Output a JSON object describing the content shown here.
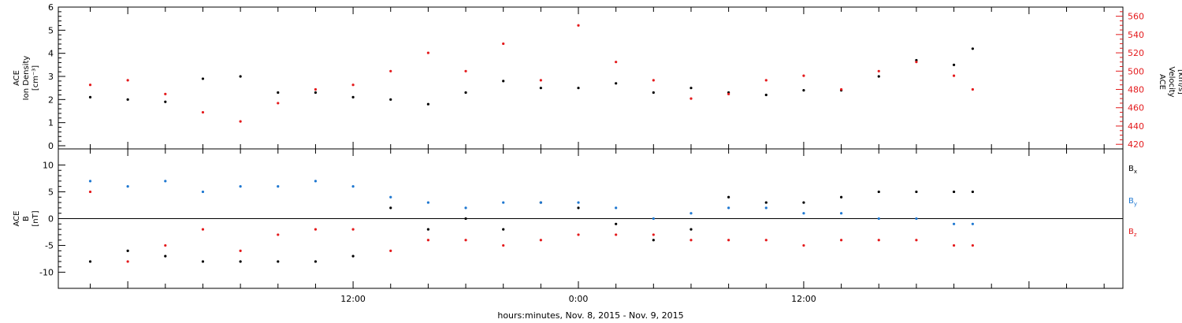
{
  "chart_data": [
    {
      "type": "scatter",
      "panel": "top",
      "left_axis_label": [
        "ACE",
        "Ion Density",
        "[cm⁻³]"
      ],
      "right_axis_label": [
        "ACE",
        "Velocity",
        "[km/s]"
      ],
      "ylim_left": [
        0,
        6
      ],
      "yticks_left": [
        "0",
        "1",
        "2",
        "3",
        "4",
        "5",
        "6"
      ],
      "ylim_right": [
        415,
        570
      ],
      "yticks_right": [
        "420",
        "440",
        "460",
        "480",
        "500",
        "520",
        "540",
        "560"
      ],
      "series": [
        {
          "color": "#000000",
          "axis": "left",
          "x": [
            -14,
            -12,
            -10,
            -8,
            -6,
            -4,
            -2,
            0,
            2,
            4,
            6,
            8,
            10,
            12,
            14,
            16,
            18,
            20,
            22,
            24,
            26,
            28,
            30,
            32,
            33
          ],
          "y": [
            2.1,
            2.0,
            1.9,
            2.9,
            3.0,
            2.3,
            2.3,
            2.1,
            2.0,
            1.8,
            2.3,
            2.8,
            2.5,
            2.5,
            2.7,
            2.3,
            2.5,
            2.3,
            2.2,
            2.4,
            2.4,
            3.0,
            3.7,
            3.5,
            4.2
          ]
        },
        {
          "color": "#e41a1c",
          "axis": "right",
          "x": [
            -14,
            -12,
            -10,
            -8,
            -6,
            -4,
            -2,
            0,
            2,
            4,
            6,
            8,
            10,
            12,
            14,
            16,
            18,
            20,
            22,
            24,
            26,
            28,
            30,
            32,
            33
          ],
          "y": [
            485,
            490,
            475,
            455,
            445,
            465,
            480,
            485,
            500,
            520,
            500,
            530,
            490,
            550,
            510,
            490,
            470,
            475,
            490,
            495,
            480,
            500,
            510,
            495,
            480
          ]
        }
      ]
    },
    {
      "type": "scatter",
      "panel": "bottom",
      "left_axis_label": [
        "ACE",
        "B",
        "[nT]"
      ],
      "ylim": [
        -13,
        13
      ],
      "yticks": [
        "-10",
        "-5",
        "0",
        "5",
        "10"
      ],
      "legend": [
        "Bx",
        "By",
        "Bz"
      ],
      "series": [
        {
          "name": "Bx",
          "color": "#000000",
          "x": [
            -14,
            -12,
            -10,
            -8,
            -6,
            -4,
            -2,
            0,
            2,
            4,
            6,
            8,
            10,
            12,
            14,
            16,
            18,
            20,
            22,
            24,
            26,
            28,
            30,
            32,
            33
          ],
          "y": [
            -8,
            -6,
            -7,
            -8,
            -8,
            -8,
            -8,
            -7,
            2,
            -2,
            0,
            -2,
            3,
            2,
            -1,
            -4,
            -2,
            4,
            3,
            3,
            4,
            5,
            5,
            5,
            5
          ]
        },
        {
          "name": "By",
          "color": "#1f78d1",
          "x": [
            -14,
            -12,
            -10,
            -8,
            -6,
            -4,
            -2,
            0,
            2,
            4,
            6,
            8,
            10,
            12,
            14,
            16,
            18,
            20,
            22,
            24,
            26,
            28,
            30,
            32,
            33
          ],
          "y": [
            7,
            6,
            7,
            5,
            6,
            6,
            7,
            6,
            4,
            3,
            2,
            3,
            3,
            3,
            2,
            0,
            1,
            2,
            2,
            1,
            1,
            0,
            0,
            -1,
            -1
          ]
        },
        {
          "name": "Bz",
          "color": "#e41a1c",
          "x": [
            -14,
            -12,
            -10,
            -8,
            -6,
            -4,
            -2,
            0,
            2,
            4,
            6,
            8,
            10,
            12,
            14,
            16,
            18,
            20,
            22,
            24,
            26,
            28,
            30,
            32,
            33
          ],
          "y": [
            5,
            -8,
            -5,
            -2,
            -6,
            -3,
            -2,
            -2,
            -6,
            -4,
            -4,
            -5,
            -4,
            -3,
            -3,
            -3,
            -4,
            -4,
            -4,
            -5,
            -4,
            -4,
            -4,
            -5,
            -5
          ]
        }
      ]
    }
  ],
  "x_axis": {
    "label": "hours:minutes, Nov. 8, 2015 - Nov. 9, 2015",
    "tick_labels": [
      "12:00",
      "0:00",
      "12:00"
    ]
  }
}
